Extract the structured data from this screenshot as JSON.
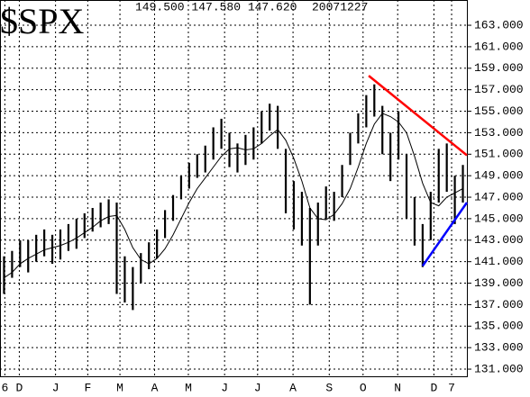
{
  "chart_data": {
    "type": "hl_bar",
    "title": "$SPX",
    "quote": "149.500 147.580 147.620",
    "date": "20071227",
    "x": [
      0,
      1,
      2,
      3,
      4,
      5,
      6,
      7,
      8,
      9,
      10,
      11,
      12,
      13,
      14,
      15,
      16,
      17,
      18,
      19,
      20,
      21,
      22,
      23,
      24,
      25,
      26,
      27,
      28,
      29,
      30,
      31,
      32,
      33,
      34,
      35,
      36,
      37,
      38,
      39,
      40,
      41,
      42,
      43,
      44,
      45,
      46,
      47,
      48,
      49,
      50,
      51,
      52,
      53,
      54,
      55,
      56,
      57
    ],
    "high": [
      141.5,
      142.0,
      143.0,
      143.0,
      143.5,
      144.0,
      143.5,
      144.0,
      144.5,
      145.0,
      145.5,
      146.0,
      146.5,
      146.8,
      146.5,
      141.5,
      140.5,
      141.8,
      142.8,
      144.0,
      145.8,
      147.2,
      149.0,
      150.2,
      151.0,
      151.8,
      153.5,
      154.3,
      153.0,
      152.0,
      152.8,
      153.5,
      155.0,
      155.7,
      155.5,
      151.5,
      148.5,
      147.5,
      146.0,
      146.5,
      148.0,
      147.5,
      150.0,
      153.0,
      154.8,
      156.5,
      157.5,
      155.5,
      153.0,
      155.0,
      151.0,
      147.0,
      144.5,
      147.5,
      151.5,
      152.0,
      149.0,
      150.0
    ],
    "low": [
      138.0,
      139.5,
      140.5,
      140.0,
      141.0,
      141.5,
      140.8,
      141.2,
      142.0,
      142.2,
      143.2,
      143.8,
      144.2,
      144.5,
      138.0,
      137.2,
      136.5,
      139.0,
      140.3,
      141.3,
      143.2,
      144.8,
      146.8,
      147.8,
      148.8,
      149.3,
      150.5,
      151.5,
      149.8,
      149.3,
      150.0,
      150.5,
      152.0,
      153.2,
      151.5,
      145.5,
      144.0,
      142.5,
      137.0,
      142.5,
      145.0,
      144.8,
      147.0,
      150.0,
      152.0,
      153.5,
      154.5,
      151.0,
      148.5,
      150.5,
      145.0,
      142.5,
      140.5,
      143.0,
      146.5,
      147.5,
      144.5,
      146.5
    ],
    "ma": [
      139.5,
      140.0,
      140.8,
      141.3,
      141.7,
      142.1,
      142.3,
      142.5,
      142.8,
      143.2,
      143.7,
      144.2,
      144.8,
      145.2,
      145.3,
      144.0,
      142.3,
      141.2,
      140.8,
      141.3,
      142.2,
      143.5,
      145.0,
      146.5,
      147.8,
      148.8,
      149.8,
      150.8,
      151.5,
      151.6,
      151.4,
      151.5,
      152.0,
      152.7,
      153.3,
      152.3,
      150.6,
      148.5,
      146.0,
      145.0,
      144.9,
      145.4,
      146.4,
      147.8,
      149.8,
      152.0,
      153.8,
      154.8,
      154.5,
      154.0,
      153.0,
      150.8,
      148.3,
      146.5,
      146.2,
      147.0,
      147.4,
      147.8
    ],
    "ma_color": "#000000",
    "bar_color": "#000000",
    "trendlines": [
      {
        "color": "#ff0000",
        "x": [
          45.3,
          57.5
        ],
        "values": [
          158.3,
          150.9
        ]
      },
      {
        "color": "#0000ff",
        "x": [
          52,
          57.5
        ],
        "values": [
          140.6,
          146.5
        ]
      }
    ],
    "xlim": [
      -0.5,
      57.5
    ],
    "xticks": [
      {
        "value": 0.1,
        "label": "6"
      },
      {
        "value": 1.9,
        "label": "D"
      },
      {
        "value": 6.4,
        "label": "J"
      },
      {
        "value": 10.4,
        "label": "F"
      },
      {
        "value": 14.4,
        "label": "M"
      },
      {
        "value": 18.7,
        "label": "A"
      },
      {
        "value": 22.9,
        "label": "M"
      },
      {
        "value": 27.4,
        "label": "J"
      },
      {
        "value": 31.5,
        "label": "J"
      },
      {
        "value": 35.9,
        "label": "A"
      },
      {
        "value": 40.4,
        "label": "S"
      },
      {
        "value": 44.6,
        "label": "O"
      },
      {
        "value": 48.9,
        "label": "N"
      },
      {
        "value": 53.4,
        "label": "D"
      },
      {
        "value": 55.6,
        "label": "7"
      }
    ],
    "ylim": [
      130.25,
      165.35
    ],
    "yticks": [
      {
        "value": 163,
        "label": "163.000"
      },
      {
        "value": 161,
        "label": "161.000"
      },
      {
        "value": 159,
        "label": "159.000"
      },
      {
        "value": 157,
        "label": "157.000"
      },
      {
        "value": 155,
        "label": "155.000"
      },
      {
        "value": 153,
        "label": "153.000"
      },
      {
        "value": 151,
        "label": "151.000"
      },
      {
        "value": 149,
        "label": "149.000"
      },
      {
        "value": 147,
        "label": "147.000"
      },
      {
        "value": 145,
        "label": "145.000"
      },
      {
        "value": 143,
        "label": "143.000"
      },
      {
        "value": 141,
        "label": "141.000"
      },
      {
        "value": 139,
        "label": "139.000"
      },
      {
        "value": 137,
        "label": "137.000"
      },
      {
        "value": 135,
        "label": "135.000"
      },
      {
        "value": 133,
        "label": "133.000"
      },
      {
        "value": 131,
        "label": "131.000"
      }
    ],
    "grid": true
  }
}
